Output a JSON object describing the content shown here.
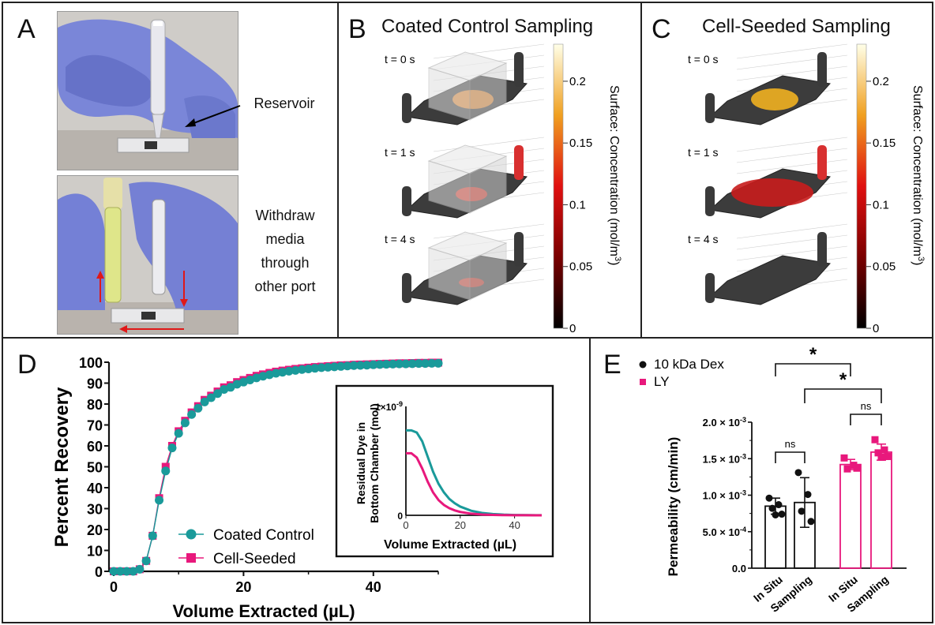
{
  "panelA": {
    "label": "A",
    "callout_top": "Reservoir",
    "callout_bottom": [
      "Withdraw",
      "media",
      "through",
      "other port"
    ]
  },
  "panelB": {
    "label": "B",
    "title": "Coated Control Sampling"
  },
  "panelC": {
    "label": "C",
    "title": "Cell-Seeded Sampling"
  },
  "sim": {
    "times": [
      "t = 0 s",
      "t = 1 s",
      "t = 4 s"
    ],
    "colorbar_label": "Surface: Concentration (mol/m",
    "colorbar_sup": "3",
    "colorbar_close": ")",
    "colorbar_ticks": [
      "0.2",
      "0.15",
      "0.1",
      "0.05",
      "0"
    ]
  },
  "panelD": {
    "label": "D",
    "inset_ylabel_1": "Residual Dye in",
    "inset_ylabel_2": "Bottom Chamber (mol)",
    "inset_xlabel": "Volume Extracted (µL)",
    "inset_ymax_label": "1×10",
    "inset_ymax_exp": "-9",
    "inset_y0_label": "0"
  },
  "panelE": {
    "label": "E",
    "sig": "*",
    "ns": "ns"
  },
  "chart_data": [
    {
      "type": "line",
      "xlabel": "Volume Extracted (µL)",
      "ylabel": "Percent Recovery",
      "xlim": [
        0,
        50
      ],
      "ylim": [
        0,
        100
      ],
      "xticks": [
        0,
        20,
        40
      ],
      "yticks": [
        0,
        10,
        20,
        30,
        40,
        50,
        60,
        70,
        80,
        90,
        100
      ],
      "legend_position": "bottom-left",
      "x": [
        0,
        1,
        2,
        3,
        4,
        5,
        6,
        7,
        8,
        9,
        10,
        11,
        12,
        13,
        14,
        15,
        16,
        17,
        18,
        19,
        20,
        21,
        22,
        23,
        24,
        25,
        26,
        27,
        28,
        29,
        30,
        31,
        32,
        33,
        34,
        35,
        36,
        37,
        38,
        39,
        40,
        41,
        42,
        43,
        44,
        45,
        46,
        47,
        48,
        49,
        50
      ],
      "series": [
        {
          "name": "Coated Control",
          "color": "#1a9a9a",
          "marker": "circle",
          "values": [
            0,
            0,
            0,
            0,
            1,
            5,
            17,
            34,
            48,
            59,
            66,
            71,
            75,
            78,
            81,
            83,
            85,
            87,
            88,
            89.5,
            90.5,
            91.5,
            92.5,
            93.3,
            94,
            94.7,
            95.2,
            95.7,
            96.1,
            96.5,
            96.8,
            97.1,
            97.4,
            97.6,
            97.8,
            98,
            98.2,
            98.4,
            98.5,
            98.6,
            98.8,
            98.9,
            99,
            99.1,
            99.2,
            99.2,
            99.3,
            99.4,
            99.4,
            99.5,
            99.5
          ]
        },
        {
          "name": "Cell-Seeded",
          "color": "#e8187c",
          "marker": "square",
          "values": [
            0,
            0,
            0,
            0,
            1,
            5,
            17,
            35,
            50,
            60,
            67,
            72,
            76,
            79,
            82,
            84,
            86,
            88,
            89,
            90.5,
            91.5,
            92.5,
            93.5,
            94.2,
            94.9,
            95.5,
            96,
            96.4,
            96.8,
            97.1,
            97.4,
            97.7,
            97.9,
            98.1,
            98.3,
            98.5,
            98.6,
            98.8,
            98.9,
            99,
            99.1,
            99.2,
            99.3,
            99.4,
            99.5,
            99.5,
            99.6,
            99.7,
            99.7,
            99.8,
            99.8
          ]
        }
      ]
    },
    {
      "type": "line",
      "xlabel": "Volume Extracted (µL)",
      "ylabel": "Residual Dye in Bottom Chamber (mol)",
      "xlim": [
        0,
        50
      ],
      "ylim": [
        0,
        1e-09
      ],
      "xticks": [
        0,
        20,
        40
      ],
      "x": [
        0,
        2,
        4,
        6,
        8,
        10,
        12,
        14,
        16,
        18,
        20,
        24,
        28,
        32,
        36,
        40,
        44,
        48,
        50
      ],
      "series": [
        {
          "color": "#1a9a9a",
          "values": [
            7.8e-10,
            7.8e-10,
            7.6e-10,
            6.8e-10,
            5.4e-10,
            4e-10,
            2.9e-10,
            2.1e-10,
            1.5e-10,
            1.1e-10,
            8e-11,
            4.2e-11,
            2.2e-11,
            1.2e-11,
            6e-12,
            3e-12,
            1.5e-12,
            1e-12,
            1e-12
          ]
        },
        {
          "color": "#e8187c",
          "values": [
            5.7e-10,
            5.7e-10,
            5.3e-10,
            4.3e-10,
            3.1e-10,
            2.1e-10,
            1.4e-10,
            9.5e-11,
            6.5e-11,
            4.5e-11,
            3.1e-11,
            1.5e-11,
            7e-12,
            3.5e-12,
            1.7e-12,
            1e-12,
            5e-13,
            2e-13,
            1e-13
          ]
        }
      ]
    },
    {
      "type": "bar",
      "ylabel": "Permeability (cm/min)",
      "ylim": [
        0,
        0.002
      ],
      "yticks": [
        {
          "mant": "0.0",
          "exp": ""
        },
        {
          "mant": "5.0 × 10",
          "exp": "-4"
        },
        {
          "mant": "1.0 × 10",
          "exp": "-3"
        },
        {
          "mant": "1.5 × 10",
          "exp": "-3"
        },
        {
          "mant": "2.0 × 10",
          "exp": "-3"
        }
      ],
      "legend_position": "top-left",
      "legend": [
        {
          "name": "10 kDa Dex",
          "color": "#111111",
          "marker": "circle"
        },
        {
          "name": "LY",
          "color": "#e8187c",
          "marker": "square"
        }
      ],
      "bars": [
        {
          "category": "In Situ",
          "series": "10 kDa Dex",
          "color": "#111111",
          "mean": 0.00085,
          "sd": 0.00011,
          "points": [
            0.00096,
            0.00087,
            0.00082,
            0.00074,
            0.00073
          ]
        },
        {
          "category": "Sampling",
          "series": "10 kDa Dex",
          "color": "#111111",
          "mean": 0.0009,
          "sd": 0.00034,
          "points": [
            0.00131,
            0.00101,
            0.00078,
            0.00064
          ]
        },
        {
          "category": "In Situ",
          "series": "LY",
          "color": "#e8187c",
          "mean": 0.00142,
          "sd": 7e-05,
          "points": [
            0.00151,
            0.00141,
            0.00136,
            0.00137
          ]
        },
        {
          "category": "Sampling",
          "series": "LY",
          "color": "#e8187c",
          "mean": 0.00159,
          "sd": 0.00011,
          "points": [
            0.00176,
            0.00162,
            0.00158,
            0.00153,
            0.00152
          ]
        }
      ],
      "comparisons": [
        {
          "between": [
            "In Situ · 10 kDa Dex",
            "In Situ · LY"
          ],
          "label": "*"
        },
        {
          "between": [
            "Sampling · 10 kDa Dex",
            "Sampling · LY"
          ],
          "label": "*"
        },
        {
          "between": [
            "In Situ · 10 kDa Dex",
            "Sampling · 10 kDa Dex"
          ],
          "label": "ns"
        },
        {
          "between": [
            "In Situ · LY",
            "Sampling · LY"
          ],
          "label": "ns"
        }
      ]
    }
  ]
}
